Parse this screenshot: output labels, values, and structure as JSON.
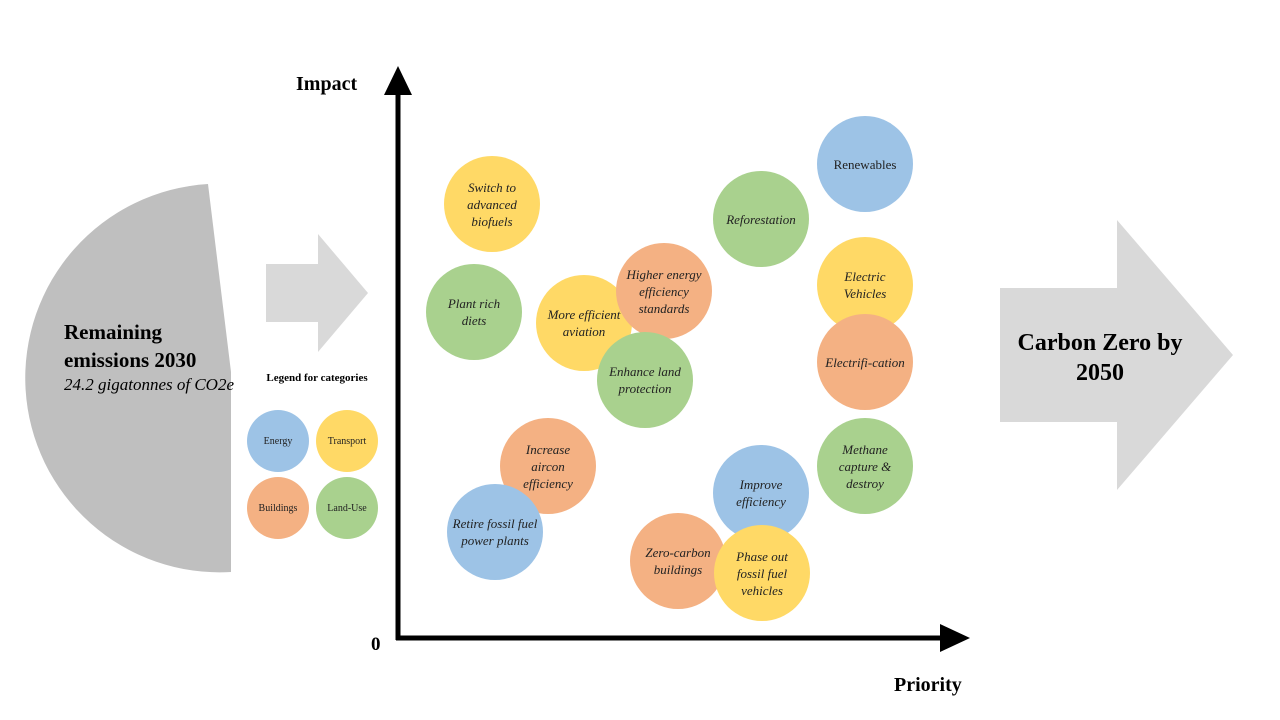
{
  "colors": {
    "energy": "#9dc3e6",
    "transport": "#ffd966",
    "buildings": "#f4b183",
    "land_use": "#a9d18e",
    "gray_shape": "#bfbfbf",
    "light_arrow": "#d9d9d9",
    "axis": "#000000"
  },
  "remaining": {
    "title": "Remaining emissions 2030",
    "subtitle": "24.2 gigatonnes of CO2e"
  },
  "legend": {
    "title": "Legend for categories",
    "items": [
      {
        "label": "Energy",
        "color_key": "energy"
      },
      {
        "label": "Transport",
        "color_key": "transport"
      },
      {
        "label": "Buildings",
        "color_key": "buildings"
      },
      {
        "label": "Land-Use",
        "color_key": "land_use"
      }
    ]
  },
  "axes": {
    "y_label": "Impact",
    "x_label": "Priority",
    "origin_label": "0"
  },
  "bubbles": [
    {
      "label": "Switch to advanced biofuels",
      "category": "transport"
    },
    {
      "label": "Plant rich diets",
      "category": "land_use"
    },
    {
      "label": "More efficient aviation",
      "category": "transport"
    },
    {
      "label": "Higher energy efficiency standards",
      "category": "buildings"
    },
    {
      "label": "Enhance land protection",
      "category": "land_use"
    },
    {
      "label": "Reforestation",
      "category": "land_use"
    },
    {
      "label": "Renewables",
      "category": "energy"
    },
    {
      "label": "Electric Vehicles",
      "category": "transport"
    },
    {
      "label": "Electrifi-cation",
      "category": "buildings"
    },
    {
      "label": "Increase aircon efficiency",
      "category": "buildings"
    },
    {
      "label": "Retire fossil fuel power plants",
      "category": "energy"
    },
    {
      "label": "Improve efficiency",
      "category": "energy"
    },
    {
      "label": "Methane capture & destroy",
      "category": "land_use"
    },
    {
      "label": "Zero-carbon buildings",
      "category": "buildings"
    },
    {
      "label": "Phase out fossil fuel vehicles",
      "category": "transport"
    }
  ],
  "result": {
    "title": "Carbon Zero by 2050"
  }
}
